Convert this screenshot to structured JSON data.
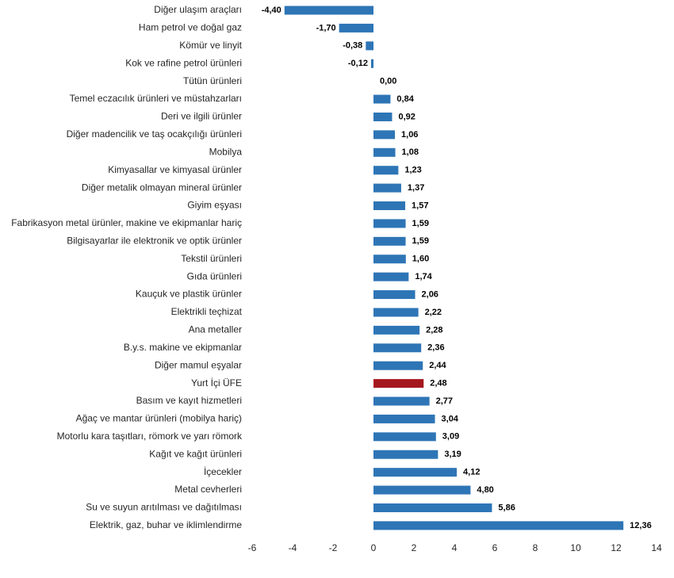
{
  "chart_data": {
    "type": "bar",
    "orientation": "horizontal",
    "categories": [
      "Diğer ulaşım araçları",
      "Ham petrol ve doğal gaz",
      "Kömür ve linyit",
      "Kok ve rafine petrol ürünleri",
      "Tütün ürünleri",
      "Temel eczacılık ürünleri ve müstahzarları",
      "Deri ve ilgili ürünler",
      "Diğer madencilik ve taş ocakçılığı ürünleri",
      "Mobilya",
      "Kimyasallar ve kimyasal ürünler",
      "Diğer metalik olmayan mineral ürünler",
      "Giyim eşyası",
      "Fabrikasyon metal ürünler, makine ve ekipmanlar hariç",
      "Bilgisayarlar ile elektronik ve optik ürünler",
      "Tekstil ürünleri",
      "Gıda ürünleri",
      "Kauçuk ve plastik ürünler",
      "Elektrikli teçhizat",
      "Ana metaller",
      "B.y.s. makine ve ekipmanlar",
      "Diğer mamul eşyalar",
      "Yurt İçi ÜFE",
      "Basım ve kayıt hizmetleri",
      "Ağaç ve mantar ürünleri (mobilya hariç)",
      "Motorlu kara taşıtları, römork ve yarı römork",
      "Kağıt ve kağıt ürünleri",
      "İçecekler",
      "Metal cevherleri",
      "Su ve suyun arıtılması ve dağıtılması",
      "Elektrik, gaz, buhar ve iklimlendirme"
    ],
    "values": [
      -4.4,
      -1.7,
      -0.38,
      -0.12,
      0.0,
      0.84,
      0.92,
      1.06,
      1.08,
      1.23,
      1.37,
      1.57,
      1.59,
      1.59,
      1.6,
      1.74,
      2.06,
      2.22,
      2.28,
      2.36,
      2.44,
      2.48,
      2.77,
      3.04,
      3.09,
      3.19,
      4.12,
      4.8,
      5.86,
      12.36
    ],
    "value_labels": [
      "-4,40",
      "-1,70",
      "-0,38",
      "-0,12",
      "0,00",
      "0,84",
      "0,92",
      "1,06",
      "1,08",
      "1,23",
      "1,37",
      "1,57",
      "1,59",
      "1,59",
      "1,60",
      "1,74",
      "2,06",
      "2,22",
      "2,28",
      "2,36",
      "2,44",
      "2,48",
      "2,77",
      "3,04",
      "3,09",
      "3,19",
      "4,12",
      "4,80",
      "5,86",
      "12,36"
    ],
    "colors": [
      "#2e75b6",
      "#2e75b6",
      "#2e75b6",
      "#2e75b6",
      "#2e75b6",
      "#2e75b6",
      "#2e75b6",
      "#2e75b6",
      "#2e75b6",
      "#2e75b6",
      "#2e75b6",
      "#2e75b6",
      "#2e75b6",
      "#2e75b6",
      "#2e75b6",
      "#2e75b6",
      "#2e75b6",
      "#2e75b6",
      "#2e75b6",
      "#2e75b6",
      "#2e75b6",
      "#a5171e",
      "#2e75b6",
      "#2e75b6",
      "#2e75b6",
      "#2e75b6",
      "#2e75b6",
      "#2e75b6",
      "#2e75b6",
      "#2e75b6"
    ],
    "xlim": [
      -6,
      14
    ],
    "xticks": [
      -6,
      -4,
      -2,
      0,
      2,
      4,
      6,
      8,
      10,
      12,
      14
    ]
  }
}
